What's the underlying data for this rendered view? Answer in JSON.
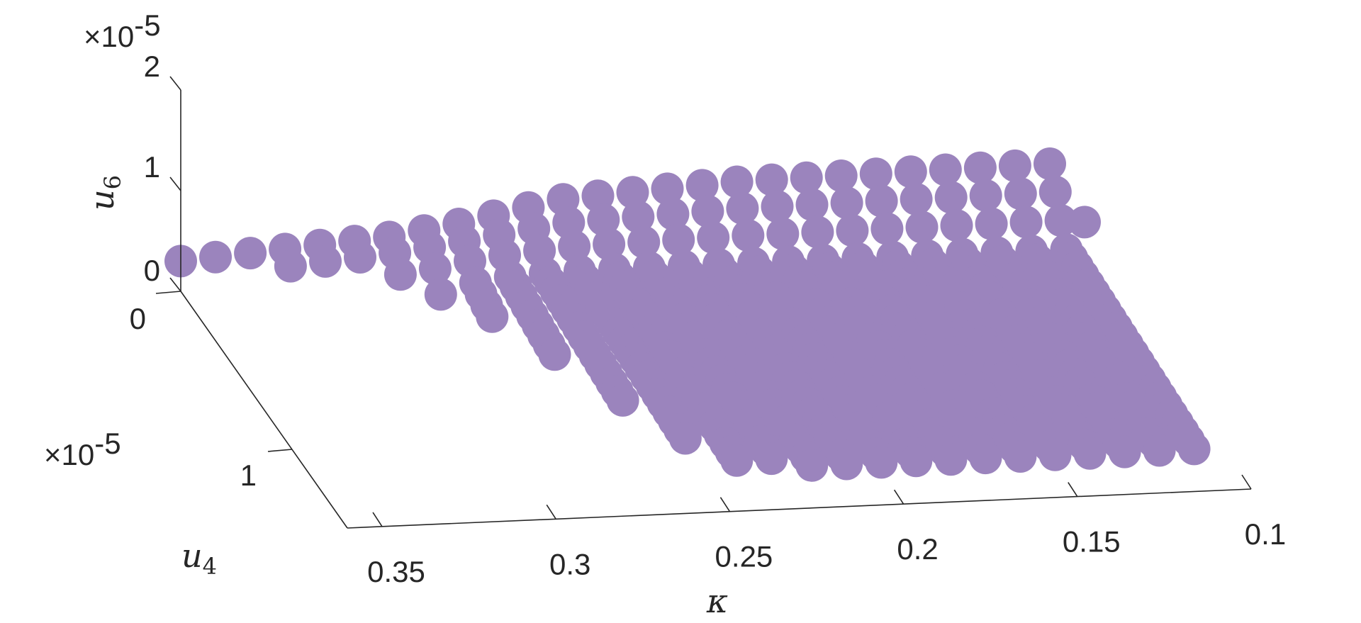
{
  "chart_data": {
    "type": "scatter",
    "projection": "3d",
    "marker_color": "#9b84bd",
    "axes": {
      "x": {
        "label": "κ",
        "ticks": [
          0.35,
          0.3,
          0.25,
          0.2,
          0.15,
          0.1
        ],
        "tick_labels": [
          "0.35",
          "0.3",
          "0.25",
          "0.2",
          "0.15",
          "0.1"
        ],
        "range": [
          0.1,
          0.36
        ],
        "direction": "reversed"
      },
      "y": {
        "label": "u",
        "label_sub": "4",
        "ticks": [
          0,
          1
        ],
        "tick_labels": [
          "0",
          "1"
        ],
        "multiplier": "×10",
        "exponent": "-5",
        "range": [
          0,
          1.5
        ]
      },
      "z": {
        "label": "u",
        "label_sub": "6",
        "ticks": [
          0,
          1,
          2
        ],
        "tick_labels": [
          "0",
          "1",
          "2"
        ],
        "multiplier": "×10",
        "exponent": "-5",
        "range": [
          0,
          2
        ]
      }
    },
    "grid": false,
    "region": {
      "kappa_min": 0.1,
      "kappa_max": 0.36,
      "kappa_step": 0.01,
      "u4_step": 0.05,
      "u4_max_points": [
        [
          0.1,
          1.3
        ],
        [
          0.14,
          1.3
        ],
        [
          0.18,
          1.3
        ],
        [
          0.22,
          1.3
        ],
        [
          0.24,
          1.25
        ],
        [
          0.25,
          1.1
        ],
        [
          0.26,
          0.85
        ],
        [
          0.27,
          0.55
        ],
        [
          0.28,
          0.3
        ],
        [
          0.29,
          0.15
        ],
        [
          0.31,
          0.08
        ],
        [
          0.33,
          0.05
        ],
        [
          0.36,
          0.03
        ]
      ],
      "u6_of_u4": {
        "at_0": 0.3,
        "at_max": 0.1
      },
      "u6_top_edge": [
        [
          0.1,
          0.9
        ],
        [
          0.2,
          0.85
        ],
        [
          0.25,
          0.75
        ],
        [
          0.28,
          0.55
        ],
        [
          0.3,
          0.45
        ],
        [
          0.36,
          0.3
        ]
      ]
    }
  }
}
